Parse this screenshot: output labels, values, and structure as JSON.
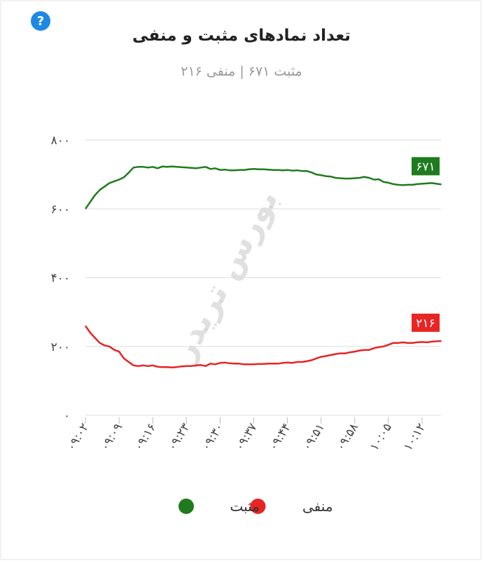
{
  "help_icon": "?",
  "watermark": "بورس تریدر",
  "chart_data": {
    "type": "line",
    "title": "تعداد نمادهای مثبت و منفی",
    "subtitle": "مثبت ۶۷۱ | منفی ۲۱۶",
    "categories": [
      "۰۹:۰۲",
      null,
      null,
      null,
      null,
      null,
      null,
      "۰۹:۰۹",
      null,
      null,
      null,
      null,
      null,
      null,
      "۰۹:۱۶",
      null,
      null,
      null,
      null,
      null,
      null,
      "۰۹:۲۳",
      null,
      null,
      null,
      null,
      null,
      null,
      "۰۹:۳۰",
      null,
      null,
      null,
      null,
      null,
      null,
      "۰۹:۳۷",
      null,
      null,
      null,
      null,
      null,
      null,
      "۰۹:۴۴",
      null,
      null,
      null,
      null,
      null,
      null,
      "۰۹:۵۱",
      null,
      null,
      null,
      null,
      null,
      null,
      "۰۹:۵۸",
      null,
      null,
      null,
      null,
      null,
      null,
      "۱۰:۰۵",
      null,
      null,
      null,
      null,
      null,
      null,
      "۱۰:۱۲",
      null,
      null,
      null,
      null
    ],
    "series": [
      {
        "name": "مثبت",
        "color": "#1e7b1e",
        "values": [
          600,
          620,
          640,
          655,
          665,
          675,
          680,
          685,
          692,
          705,
          720,
          722,
          722,
          720,
          722,
          718,
          723,
          722,
          723,
          722,
          721,
          720,
          719,
          718,
          720,
          722,
          716,
          718,
          713,
          714,
          712,
          712,
          713,
          713,
          715,
          716,
          715,
          715,
          714,
          713,
          713,
          712,
          713,
          711,
          712,
          710,
          710,
          706,
          700,
          698,
          695,
          694,
          690,
          689,
          688,
          688,
          689,
          690,
          693,
          690,
          685,
          686,
          678,
          676,
          672,
          670,
          669,
          670,
          670,
          672,
          673,
          674,
          675,
          673,
          671
        ],
        "value_labels": [
          null,
          null,
          null,
          null,
          null,
          null,
          null,
          null,
          null,
          null,
          null,
          null,
          null,
          null,
          null,
          null,
          null,
          null,
          null,
          null,
          null,
          null,
          null,
          null,
          null,
          null,
          null,
          null,
          null,
          null,
          null,
          null,
          null,
          null,
          null,
          null,
          null,
          null,
          null,
          null,
          null,
          null,
          null,
          null,
          null,
          null,
          null,
          null,
          null,
          null,
          null,
          null,
          null,
          null,
          null,
          null,
          null,
          null,
          null,
          null,
          null,
          null,
          null,
          null,
          null,
          null,
          null,
          null,
          null,
          null,
          null,
          null,
          null,
          null,
          "۶۷۱"
        ]
      },
      {
        "name": "منفی",
        "color": "#e82424",
        "values": [
          260,
          240,
          225,
          210,
          203,
          200,
          190,
          185,
          165,
          155,
          145,
          143,
          145,
          143,
          145,
          141,
          140,
          140,
          139,
          140,
          142,
          143,
          143,
          145,
          146,
          143,
          150,
          148,
          152,
          153,
          151,
          150,
          150,
          148,
          148,
          148,
          149,
          149,
          150,
          150,
          150,
          152,
          153,
          152,
          155,
          155,
          157,
          160,
          165,
          170,
          172,
          175,
          178,
          180,
          180,
          183,
          185,
          188,
          190,
          190,
          195,
          198,
          200,
          205,
          210,
          210,
          212,
          210,
          210,
          212,
          213,
          212,
          214,
          215,
          216
        ],
        "value_labels": [
          null,
          null,
          null,
          null,
          null,
          null,
          null,
          null,
          null,
          null,
          null,
          null,
          null,
          null,
          null,
          null,
          null,
          null,
          null,
          null,
          null,
          null,
          null,
          null,
          null,
          null,
          null,
          null,
          null,
          null,
          null,
          null,
          null,
          null,
          null,
          null,
          null,
          null,
          null,
          null,
          null,
          null,
          null,
          null,
          null,
          null,
          null,
          null,
          null,
          null,
          null,
          null,
          null,
          null,
          null,
          null,
          null,
          null,
          null,
          null,
          null,
          null,
          null,
          null,
          null,
          null,
          null,
          null,
          null,
          null,
          null,
          null,
          null,
          null,
          "۲۱۶"
        ]
      }
    ],
    "ylim": [
      0,
      800
    ],
    "yticks": [
      {
        "value": 0,
        "label": "۰"
      },
      {
        "value": 200,
        "label": "۲۰۰"
      },
      {
        "value": 400,
        "label": "۴۰۰"
      },
      {
        "value": 600,
        "label": "۶۰۰"
      },
      {
        "value": 800,
        "label": "۸۰۰"
      }
    ],
    "grid": true,
    "legend": "bottom"
  }
}
